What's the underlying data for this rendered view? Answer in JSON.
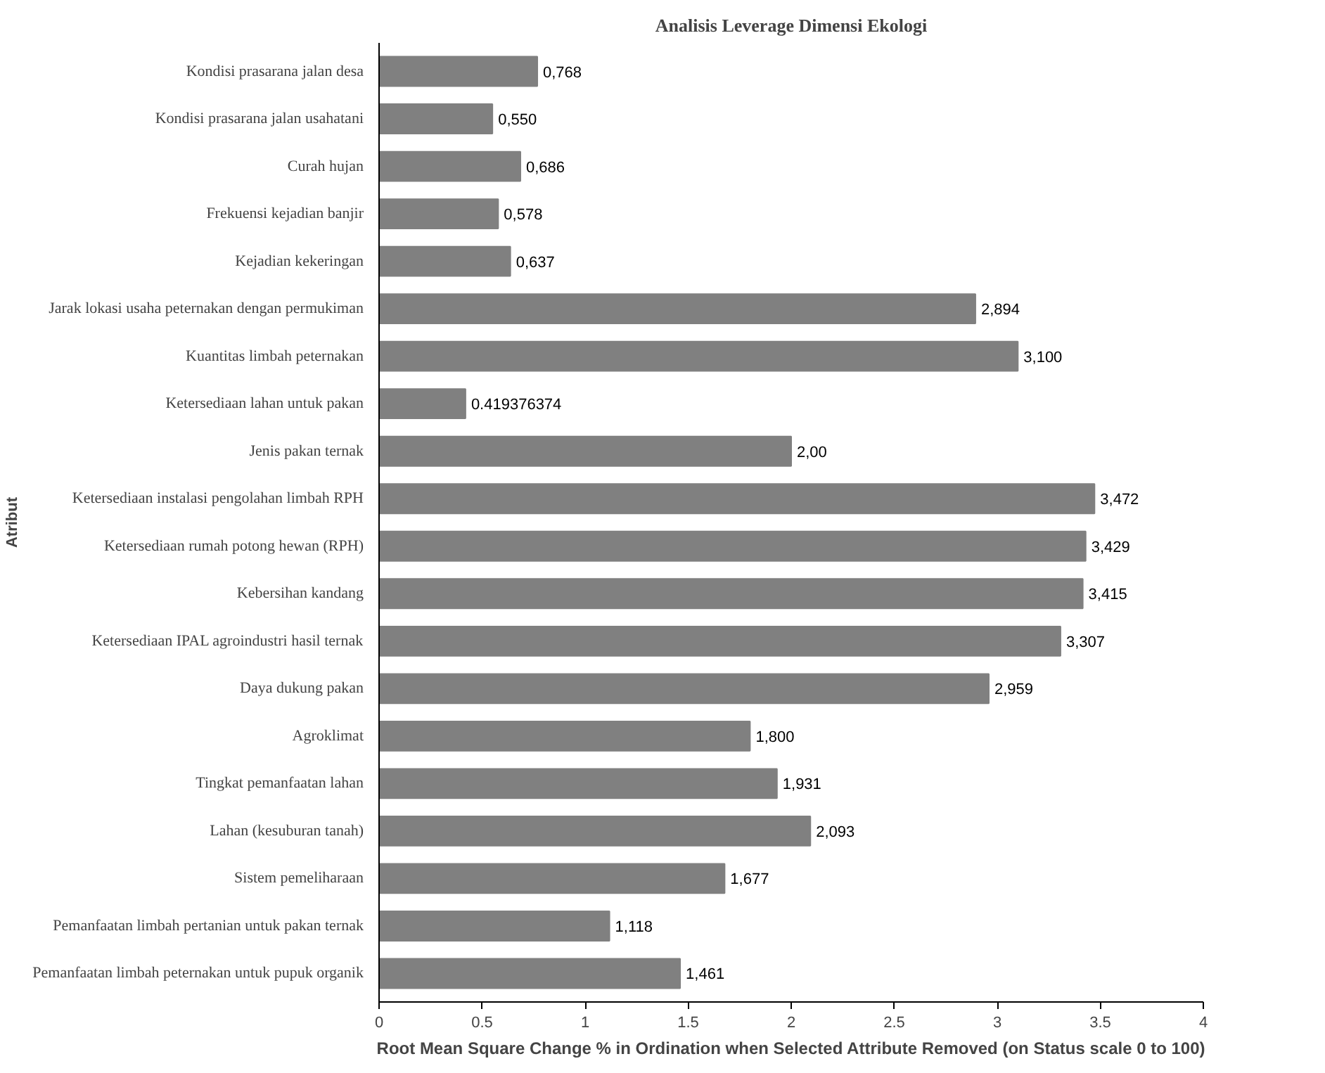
{
  "chart_data": {
    "type": "bar",
    "orientation": "horizontal",
    "title": "Analisis Leverage Dimensi Ekologi",
    "xlabel": "Root Mean Square Change % in Ordination when Selected Attribute Removed (on Status scale 0 to 100)",
    "ylabel": "Atribut",
    "categories": [
      "Kondisi prasarana jalan desa",
      "Kondisi prasarana jalan usahatani",
      "Curah hujan",
      "Frekuensi kejadian banjir",
      "Kejadian kekeringan",
      "Jarak lokasi usaha peternakan dengan permukiman",
      "Kuantitas limbah peternakan",
      "Ketersediaan lahan untuk pakan",
      "Jenis pakan ternak",
      "Ketersediaan instalasi pengolahan limbah RPH",
      "Ketersediaan rumah potong hewan (RPH)",
      "Kebersihan kandang",
      "Ketersediaan IPAL agroindustri hasil ternak",
      "Daya dukung pakan",
      "Agroklimat",
      "Tingkat pemanfaatan lahan",
      "Lahan (kesuburan tanah)",
      "Sistem pemeliharaan",
      "Pemanfaatan limbah pertanian untuk pakan ternak",
      "Pemanfaatan limbah peternakan untuk pupuk organik"
    ],
    "values": [
      0.768,
      0.55,
      0.686,
      0.578,
      0.637,
      2.894,
      3.1,
      0.419376374,
      2.0,
      3.472,
      3.429,
      3.415,
      3.307,
      2.959,
      1.8,
      1.931,
      2.093,
      1.677,
      1.118,
      1.461
    ],
    "value_labels": [
      "0,768",
      "0,550",
      "0,686",
      "0,578",
      "0,637",
      "2,894",
      "3,100",
      "0.419376374",
      "2,00",
      "3,472",
      "3,429",
      "3,415",
      "3,307",
      "2,959",
      "1,800",
      "1,931",
      "2,093",
      "1,677",
      "1,118",
      "1,461"
    ],
    "color": "#808080",
    "xlim": [
      0,
      4
    ],
    "xticks": [
      0,
      0.5,
      1,
      1.5,
      2,
      2.5,
      3,
      3.5,
      4
    ],
    "grid": false
  }
}
